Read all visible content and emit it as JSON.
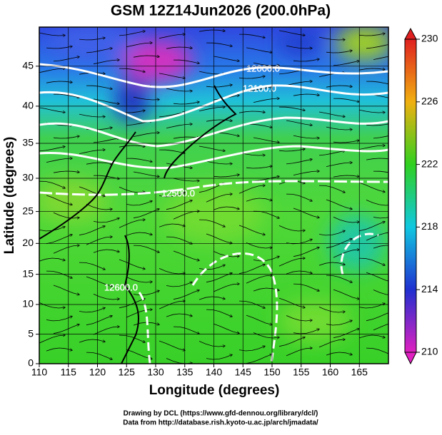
{
  "chart_data": {
    "type": "map",
    "title": "GSM 12Z14Jun2026 (200.0hPa)",
    "x_label": "Longitude (degrees)",
    "y_label": "Latitude  (degrees)",
    "xlim": [
      110,
      170
    ],
    "ylim": [
      0,
      49.5
    ],
    "y_scale": "mercator",
    "xticks": [
      110,
      115,
      120,
      125,
      130,
      135,
      140,
      145,
      150,
      155,
      160,
      165
    ],
    "yticks": [
      0,
      5,
      10,
      15,
      20,
      25,
      30,
      35,
      40,
      45
    ],
    "grid": true,
    "contour_labels": [
      "12000.0",
      "12100.0",
      "12500.0",
      "12600.0"
    ],
    "colorbar": {
      "lim": [
        210,
        230
      ],
      "ticks": [
        210,
        214,
        218,
        222,
        226,
        230
      ],
      "colors": [
        "#e020c0",
        "#2030d0",
        "#10c8e0",
        "#30d020",
        "#f0b010",
        "#e02020"
      ]
    },
    "footer": [
      "Drawing by DCL (https://www.gfd-dennou.org/library/dcl/)",
      "Data from http://database.rish.kyoto-u.ac.jp/arch/jmadata/"
    ]
  }
}
